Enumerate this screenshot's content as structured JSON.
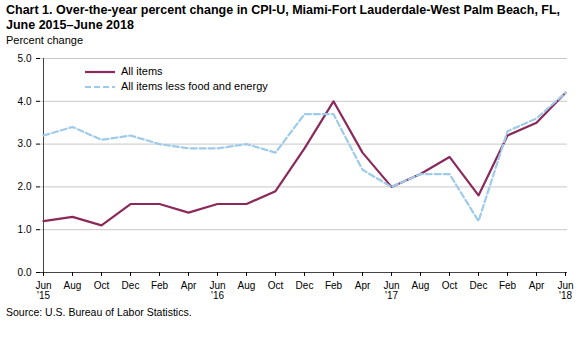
{
  "chart_data": {
    "type": "line",
    "title": "Chart 1. Over-the-year percent change in CPI-U, Miami-Fort Lauderdale-West Palm Beach, FL, June 2015–June 2018",
    "y_label": "Percent change",
    "source": "Source: U.S. Bureau of Labor Statistics.",
    "categories": [
      "Jun '15",
      "Aug",
      "Oct",
      "Dec",
      "Feb",
      "Apr",
      "Jun '16",
      "Aug",
      "Oct",
      "Dec",
      "Feb",
      "Apr",
      "Jun '17",
      "Aug",
      "Oct",
      "Dec",
      "Feb",
      "Apr",
      "Jun '18"
    ],
    "series": [
      {
        "name": "All items",
        "color": "#8b2a5a",
        "line_style": "solid",
        "values": [
          1.2,
          1.3,
          1.1,
          1.6,
          1.6,
          1.4,
          1.6,
          1.6,
          1.9,
          2.9,
          4.0,
          2.8,
          2.0,
          2.3,
          2.7,
          1.8,
          3.2,
          3.5,
          4.2
        ]
      },
      {
        "name": "All items less food and energy",
        "color": "#9fcbea",
        "line_style": "dashed",
        "values": [
          3.2,
          3.4,
          3.1,
          3.2,
          3.0,
          2.9,
          2.9,
          3.0,
          2.8,
          3.7,
          3.7,
          2.4,
          2.0,
          2.3,
          2.3,
          1.2,
          3.3,
          3.6,
          4.2
        ]
      }
    ],
    "ylim": [
      0,
      5
    ],
    "yticks": [
      {
        "value": 0,
        "label": "0.0"
      },
      {
        "value": 1,
        "label": "1.0"
      },
      {
        "value": 2,
        "label": "2.0"
      },
      {
        "value": 3,
        "label": "3.0"
      },
      {
        "value": 4,
        "label": "4.0"
      },
      {
        "value": 5,
        "label": "5.0"
      }
    ],
    "grid": true,
    "legend": "top-left"
  }
}
